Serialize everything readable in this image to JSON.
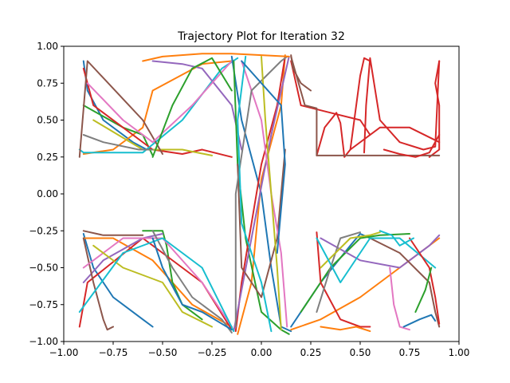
{
  "chart_data": {
    "type": "line",
    "title": "Trajectory Plot for Iteration 32",
    "xlabel": "",
    "ylabel": "",
    "xlim": [
      -1.0,
      1.0
    ],
    "ylim": [
      -1.0,
      1.0
    ],
    "x_ticks": [
      -1.0,
      -0.75,
      -0.5,
      -0.25,
      0.0,
      0.25,
      0.5,
      0.75,
      1.0
    ],
    "x_tick_labels": [
      "−1.00",
      "−0.75",
      "−0.50",
      "−0.25",
      "0.00",
      "0.25",
      "0.50",
      "0.75",
      "1.00"
    ],
    "y_ticks": [
      -1.0,
      -0.75,
      -0.5,
      -0.25,
      0.0,
      0.25,
      0.5,
      0.75,
      1.0
    ],
    "y_tick_labels": [
      "−1.00",
      "−0.75",
      "−0.50",
      "−0.25",
      "0.00",
      "0.25",
      "0.50",
      "0.75",
      "1.00"
    ],
    "grid": false,
    "legend": "none",
    "palette": [
      "#1f77b4",
      "#ff7f0e",
      "#2ca02c",
      "#d62728",
      "#9467bd",
      "#8c564b",
      "#e377c2",
      "#7f7f7f",
      "#bcbd22",
      "#17becf"
    ],
    "series": [
      {
        "color": "#1f77b4",
        "x": [
          -0.9,
          -0.88,
          -0.8,
          -0.65,
          -0.58
        ],
        "y": [
          0.9,
          0.7,
          0.5,
          0.35,
          0.3
        ]
      },
      {
        "color": "#ff7f0e",
        "x": [
          -0.9,
          -0.75,
          -0.6,
          -0.55,
          -0.3,
          -0.15
        ],
        "y": [
          0.27,
          0.3,
          0.45,
          0.7,
          0.88,
          0.9
        ]
      },
      {
        "color": "#2ca02c",
        "x": [
          -0.9,
          -0.7,
          -0.6,
          -0.55
        ],
        "y": [
          0.6,
          0.45,
          0.4,
          0.26
        ]
      },
      {
        "color": "#d62728",
        "x": [
          -0.9,
          -0.85,
          -0.7,
          -0.55,
          -0.4,
          -0.3,
          -0.15
        ],
        "y": [
          0.85,
          0.6,
          0.45,
          0.3,
          0.27,
          0.3,
          0.25
        ]
      },
      {
        "color": "#17becf",
        "x": [
          -0.92,
          -0.9,
          -0.6,
          -0.4,
          -0.2,
          -0.12
        ],
        "y": [
          0.3,
          0.28,
          0.28,
          0.5,
          0.85,
          0.92
        ]
      },
      {
        "color": "#bcbd22",
        "x": [
          -0.85,
          -0.6,
          -0.4,
          -0.25
        ],
        "y": [
          0.5,
          0.3,
          0.3,
          0.26
        ]
      },
      {
        "color": "#9467bd",
        "x": [
          -0.55,
          -0.4,
          -0.3,
          -0.15,
          -0.1
        ],
        "y": [
          0.9,
          0.88,
          0.85,
          0.6,
          0.3
        ]
      },
      {
        "color": "#8c564b",
        "x": [
          -0.92,
          -0.88,
          -0.6,
          -0.5
        ],
        "y": [
          0.25,
          0.9,
          0.5,
          0.27
        ]
      },
      {
        "color": "#e377c2",
        "x": [
          -0.88,
          -0.7,
          -0.55,
          -0.35,
          -0.15
        ],
        "y": [
          0.75,
          0.5,
          0.35,
          0.6,
          0.9
        ]
      },
      {
        "color": "#7f7f7f",
        "x": [
          -0.9,
          -0.8,
          -0.62,
          -0.55
        ],
        "y": [
          0.4,
          0.35,
          0.3,
          0.3
        ]
      },
      {
        "color": "#1f77b4",
        "x": [
          -0.15,
          -0.1,
          0.0,
          0.05,
          0.1,
          0.15
        ],
        "y": [
          0.93,
          0.5,
          0.0,
          -0.5,
          -0.9,
          -0.93
        ]
      },
      {
        "color": "#ff7f0e",
        "x": [
          -0.12,
          -0.05,
          0.0,
          0.1,
          0.12
        ],
        "y": [
          -0.95,
          -0.6,
          0.1,
          0.6,
          0.94
        ]
      },
      {
        "color": "#2ca02c",
        "x": [
          -0.14,
          -0.12,
          -0.08,
          0.0,
          0.1,
          0.14
        ],
        "y": [
          0.9,
          0.2,
          -0.3,
          -0.8,
          -0.92,
          -0.95
        ]
      },
      {
        "color": "#d62728",
        "x": [
          0.12,
          0.08,
          0.0,
          -0.05,
          -0.1,
          -0.13
        ],
        "y": [
          0.93,
          0.6,
          0.2,
          -0.2,
          -0.6,
          -0.93
        ]
      },
      {
        "color": "#9467bd",
        "x": [
          -0.14,
          -0.05,
          0.05,
          0.14
        ],
        "y": [
          -0.93,
          -0.3,
          0.4,
          0.93
        ]
      },
      {
        "color": "#8c564b",
        "x": [
          -0.12,
          -0.1,
          0.0,
          0.08,
          0.12
        ],
        "y": [
          0.2,
          -0.5,
          -0.7,
          -0.3,
          0.3
        ]
      },
      {
        "color": "#e377c2",
        "x": [
          -0.1,
          0.0,
          0.05,
          0.1,
          0.13
        ],
        "y": [
          0.9,
          0.5,
          0.0,
          -0.4,
          -0.9
        ]
      },
      {
        "color": "#7f7f7f",
        "x": [
          -0.13,
          -0.13,
          -0.05,
          0.1,
          0.13
        ],
        "y": [
          -0.9,
          0.0,
          0.7,
          0.9,
          0.93
        ]
      },
      {
        "color": "#bcbd22",
        "x": [
          0.0,
          0.02,
          0.05,
          0.08,
          0.1
        ],
        "y": [
          0.93,
          0.5,
          0.0,
          -0.5,
          -0.92
        ]
      },
      {
        "color": "#17becf",
        "x": [
          -0.08,
          -0.12,
          -0.1,
          0.0,
          0.05
        ],
        "y": [
          0.93,
          0.5,
          -0.2,
          -0.6,
          -0.93
        ]
      },
      {
        "color": "#1f77b4",
        "x": [
          -0.1,
          0.1,
          0.12,
          0.08
        ],
        "y": [
          0.9,
          0.6,
          0.2,
          -0.4
        ]
      },
      {
        "color": "#ff7f0e",
        "x": [
          -0.6,
          -0.5,
          -0.3,
          -0.15,
          0.0,
          0.14
        ],
        "y": [
          0.9,
          0.93,
          0.95,
          0.95,
          0.94,
          0.93
        ]
      },
      {
        "color": "#2ca02c",
        "x": [
          -0.55,
          -0.45,
          -0.35,
          -0.25,
          -0.15
        ],
        "y": [
          0.25,
          0.6,
          0.85,
          0.92,
          0.7
        ]
      },
      {
        "color": "#d62728",
        "x": [
          0.15,
          0.2,
          0.35,
          0.5,
          0.55,
          0.45,
          0.6,
          0.75,
          0.9
        ],
        "y": [
          0.9,
          0.6,
          0.55,
          0.5,
          0.4,
          0.3,
          0.45,
          0.45,
          0.35
        ]
      },
      {
        "color": "#d62728",
        "x": [
          0.28,
          0.32,
          0.38,
          0.4,
          0.42,
          0.45,
          0.5,
          0.52,
          0.55
        ],
        "y": [
          0.26,
          0.45,
          0.55,
          0.48,
          0.25,
          0.3,
          0.8,
          0.92,
          0.9
        ]
      },
      {
        "color": "#d62728",
        "x": [
          0.52,
          0.53,
          0.55,
          0.6,
          0.7,
          0.82,
          0.88,
          0.9
        ],
        "y": [
          0.28,
          0.6,
          0.92,
          0.5,
          0.35,
          0.3,
          0.32,
          0.9
        ]
      },
      {
        "color": "#d62728",
        "x": [
          0.9,
          0.88,
          0.9,
          0.9,
          0.85
        ],
        "y": [
          0.9,
          0.75,
          0.6,
          0.3,
          0.25
        ]
      },
      {
        "color": "#8c564b",
        "x": [
          0.15,
          0.22,
          0.28,
          0.28,
          0.28,
          0.9
        ],
        "y": [
          0.93,
          0.6,
          0.58,
          0.4,
          0.26,
          0.26
        ]
      },
      {
        "color": "#d62728",
        "x": [
          0.62,
          0.7,
          0.78,
          0.85,
          0.9
        ],
        "y": [
          0.3,
          0.27,
          0.25,
          0.28,
          0.4
        ]
      },
      {
        "color": "#8c564b",
        "x": [
          0.15,
          0.16,
          0.2,
          0.25
        ],
        "y": [
          0.94,
          0.85,
          0.75,
          0.7
        ]
      },
      {
        "color": "#1f77b4",
        "x": [
          -0.9,
          -0.85,
          -0.75,
          -0.6,
          -0.55
        ],
        "y": [
          -0.27,
          -0.5,
          -0.7,
          -0.85,
          -0.9
        ]
      },
      {
        "color": "#ff7f0e",
        "x": [
          -0.9,
          -0.75,
          -0.55,
          -0.35,
          -0.15
        ],
        "y": [
          -0.3,
          -0.3,
          -0.45,
          -0.75,
          -0.9
        ]
      },
      {
        "color": "#2ca02c",
        "x": [
          -0.6,
          -0.5,
          -0.48,
          -0.45,
          -0.4,
          -0.3
        ],
        "y": [
          -0.25,
          -0.25,
          -0.35,
          -0.6,
          -0.75,
          -0.85
        ]
      },
      {
        "color": "#d62728",
        "x": [
          -0.92,
          -0.88,
          -0.6,
          -0.3,
          -0.15
        ],
        "y": [
          -0.9,
          -0.6,
          -0.3,
          -0.6,
          -0.92
        ]
      },
      {
        "color": "#9467bd",
        "x": [
          -0.9,
          -0.8,
          -0.6,
          -0.5
        ],
        "y": [
          -0.6,
          -0.45,
          -0.3,
          -0.27
        ]
      },
      {
        "color": "#8c564b",
        "x": [
          -0.9,
          -0.85,
          -0.8,
          -0.78,
          -0.75
        ],
        "y": [
          -0.3,
          -0.6,
          -0.85,
          -0.92,
          -0.9
        ]
      },
      {
        "color": "#e377c2",
        "x": [
          -0.9,
          -0.7,
          -0.5,
          -0.3,
          -0.15
        ],
        "y": [
          -0.5,
          -0.3,
          -0.3,
          -0.6,
          -0.9
        ]
      },
      {
        "color": "#7f7f7f",
        "x": [
          -0.55,
          -0.45,
          -0.35,
          -0.2,
          -0.15
        ],
        "y": [
          -0.25,
          -0.5,
          -0.7,
          -0.85,
          -0.94
        ]
      },
      {
        "color": "#bcbd22",
        "x": [
          -0.85,
          -0.7,
          -0.5,
          -0.4,
          -0.25
        ],
        "y": [
          -0.35,
          -0.5,
          -0.6,
          -0.8,
          -0.9
        ]
      },
      {
        "color": "#17becf",
        "x": [
          -0.92,
          -0.7,
          -0.5,
          -0.3,
          -0.14
        ],
        "y": [
          -0.8,
          -0.4,
          -0.3,
          -0.5,
          -0.93
        ]
      },
      {
        "color": "#1f77b4",
        "x": [
          -0.55,
          -0.5,
          -0.4,
          -0.3,
          -0.15
        ],
        "y": [
          -0.3,
          -0.5,
          -0.75,
          -0.8,
          -0.92
        ]
      },
      {
        "color": "#8c564b",
        "x": [
          -0.9,
          -0.8,
          -0.6
        ],
        "y": [
          -0.25,
          -0.28,
          -0.28
        ]
      },
      {
        "color": "#1f77b4",
        "x": [
          0.15,
          0.3,
          0.45,
          0.5,
          0.55
        ],
        "y": [
          -0.9,
          -0.6,
          -0.35,
          -0.27,
          -0.3
        ]
      },
      {
        "color": "#ff7f0e",
        "x": [
          0.15,
          0.3,
          0.5,
          0.7,
          0.9
        ],
        "y": [
          -0.92,
          -0.85,
          -0.7,
          -0.5,
          -0.3
        ]
      },
      {
        "color": "#2ca02c",
        "x": [
          0.2,
          0.35,
          0.5,
          0.6,
          0.75
        ],
        "y": [
          -0.8,
          -0.5,
          -0.3,
          -0.28,
          -0.27
        ]
      },
      {
        "color": "#d62728",
        "x": [
          0.28,
          0.3,
          0.4,
          0.5,
          0.55
        ],
        "y": [
          -0.26,
          -0.6,
          -0.85,
          -0.9,
          -0.9
        ]
      },
      {
        "color": "#9467bd",
        "x": [
          0.3,
          0.5,
          0.7,
          0.85,
          0.9
        ],
        "y": [
          -0.3,
          -0.45,
          -0.5,
          -0.35,
          -0.28
        ]
      },
      {
        "color": "#8c564b",
        "x": [
          0.55,
          0.7,
          0.85,
          0.88,
          0.9
        ],
        "y": [
          -0.3,
          -0.4,
          -0.6,
          -0.8,
          -0.9
        ]
      },
      {
        "color": "#e377c2",
        "x": [
          0.65,
          0.67,
          0.7,
          0.75
        ],
        "y": [
          -0.5,
          -0.75,
          -0.9,
          -0.92
        ]
      },
      {
        "color": "#7f7f7f",
        "x": [
          0.28,
          0.35,
          0.4,
          0.5
        ],
        "y": [
          -0.8,
          -0.5,
          -0.3,
          -0.26
        ]
      },
      {
        "color": "#bcbd22",
        "x": [
          0.3,
          0.45,
          0.55,
          0.6
        ],
        "y": [
          -0.5,
          -0.3,
          -0.28,
          -0.26
        ]
      },
      {
        "color": "#17becf",
        "x": [
          0.28,
          0.4,
          0.55,
          0.7,
          0.88
        ],
        "y": [
          -0.3,
          -0.6,
          -0.3,
          -0.3,
          -0.5
        ]
      },
      {
        "color": "#d62728",
        "x": [
          0.75,
          0.85,
          0.88,
          0.9
        ],
        "y": [
          -0.3,
          -0.5,
          -0.7,
          -0.88
        ]
      },
      {
        "color": "#1f77b4",
        "x": [
          0.72,
          0.8,
          0.86,
          0.88
        ],
        "y": [
          -0.9,
          -0.85,
          -0.82,
          -0.86
        ]
      },
      {
        "color": "#ff7f0e",
        "x": [
          0.3,
          0.4,
          0.48,
          0.55
        ],
        "y": [
          -0.9,
          -0.92,
          -0.9,
          -0.93
        ]
      },
      {
        "color": "#2ca02c",
        "x": [
          0.78,
          0.83,
          0.86
        ],
        "y": [
          -0.8,
          -0.65,
          -0.5
        ]
      },
      {
        "color": "#17becf",
        "x": [
          0.6,
          0.66,
          0.7,
          0.77
        ],
        "y": [
          -0.25,
          -0.28,
          -0.35,
          -0.3
        ]
      }
    ]
  }
}
